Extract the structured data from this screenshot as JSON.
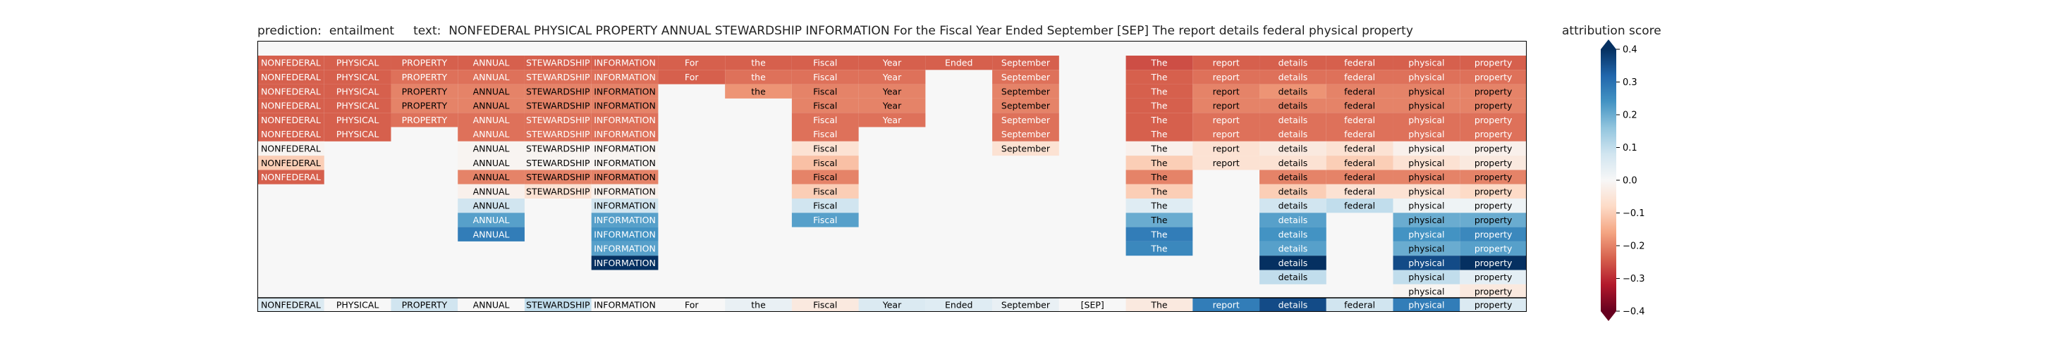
{
  "title": {
    "prediction_label": "prediction:",
    "prediction_value": "entailment",
    "text_label": "text:",
    "text_value": "NONFEDERAL PHYSICAL PROPERTY ANNUAL STEWARDSHIP INFORMATION For the Fiscal Year Ended September [SEP] The report details federal physical property"
  },
  "colorbar": {
    "title": "attribution score",
    "ticks": [
      "0.4",
      "0.3",
      "0.2",
      "0.1",
      "0.0",
      "−0.1",
      "−0.2",
      "−0.3",
      "−0.4"
    ],
    "tick_values": [
      0.4,
      0.3,
      0.2,
      0.1,
      0.0,
      -0.1,
      -0.2,
      -0.3,
      -0.4
    ],
    "range": [
      -0.4,
      0.4
    ],
    "colormap": "RdBu",
    "extend": "both"
  },
  "chart_data": {
    "type": "heatmap",
    "background": "#f7f7f7",
    "tokens": [
      "NONFEDERAL",
      "PHYSICAL",
      "PROPERTY",
      "ANNUAL",
      "STEWARDSHIP",
      "INFORMATION",
      "For",
      "the",
      "Fiscal",
      "Year",
      "Ended",
      "September",
      "[SEP]",
      "The",
      "report",
      "details",
      "federal",
      "physical",
      "property"
    ],
    "stacked_rows": [
      [
        -0.24,
        -0.24,
        -0.24,
        -0.24,
        -0.24,
        -0.24,
        -0.24,
        -0.24,
        -0.24,
        -0.24,
        -0.24,
        -0.24,
        null,
        -0.26,
        -0.24,
        -0.24,
        -0.24,
        -0.24,
        -0.24
      ],
      [
        -0.24,
        -0.24,
        -0.22,
        -0.22,
        -0.22,
        -0.22,
        -0.24,
        -0.22,
        -0.22,
        -0.22,
        null,
        -0.22,
        null,
        -0.24,
        -0.22,
        -0.22,
        -0.22,
        -0.22,
        -0.22
      ],
      [
        -0.24,
        -0.24,
        -0.2,
        -0.2,
        -0.2,
        -0.2,
        null,
        -0.18,
        -0.2,
        -0.2,
        null,
        -0.2,
        null,
        -0.24,
        -0.2,
        -0.18,
        -0.2,
        -0.2,
        -0.2
      ],
      [
        -0.24,
        -0.24,
        -0.2,
        -0.2,
        -0.2,
        -0.2,
        null,
        null,
        -0.2,
        -0.2,
        null,
        -0.2,
        null,
        -0.24,
        -0.2,
        -0.2,
        -0.2,
        -0.2,
        -0.2
      ],
      [
        -0.24,
        -0.24,
        -0.22,
        -0.22,
        -0.22,
        -0.22,
        null,
        null,
        -0.22,
        -0.22,
        null,
        -0.22,
        null,
        -0.24,
        -0.22,
        -0.22,
        -0.22,
        -0.22,
        -0.22
      ],
      [
        -0.24,
        -0.24,
        null,
        -0.22,
        -0.22,
        -0.22,
        null,
        null,
        -0.22,
        null,
        null,
        -0.22,
        null,
        -0.24,
        -0.22,
        -0.22,
        -0.22,
        -0.22,
        -0.22
      ],
      [
        -0.01,
        null,
        null,
        -0.01,
        -0.01,
        -0.01,
        null,
        null,
        -0.06,
        null,
        null,
        -0.06,
        null,
        -0.02,
        -0.06,
        -0.04,
        -0.06,
        -0.02,
        -0.02
      ],
      [
        -0.1,
        null,
        null,
        -0.01,
        -0.01,
        -0.01,
        null,
        null,
        -0.12,
        null,
        null,
        null,
        null,
        -0.1,
        -0.06,
        -0.06,
        -0.1,
        -0.06,
        -0.04
      ],
      [
        -0.24,
        null,
        null,
        -0.2,
        -0.2,
        -0.2,
        null,
        null,
        -0.2,
        null,
        null,
        null,
        null,
        -0.2,
        null,
        -0.2,
        -0.2,
        -0.2,
        -0.2
      ],
      [
        null,
        null,
        null,
        -0.02,
        -0.06,
        -0.02,
        null,
        null,
        -0.1,
        null,
        null,
        null,
        null,
        -0.1,
        null,
        -0.1,
        -0.06,
        -0.06,
        -0.08
      ],
      [
        null,
        null,
        null,
        0.08,
        null,
        0.08,
        null,
        null,
        0.08,
        null,
        null,
        null,
        null,
        0.05,
        null,
        0.08,
        0.1,
        0.02,
        0.02
      ],
      [
        null,
        null,
        null,
        0.22,
        null,
        0.22,
        null,
        null,
        0.22,
        null,
        null,
        null,
        null,
        0.2,
        null,
        0.22,
        null,
        0.2,
        0.2
      ],
      [
        null,
        null,
        null,
        0.28,
        null,
        0.24,
        null,
        null,
        null,
        null,
        null,
        null,
        null,
        0.28,
        null,
        0.24,
        null,
        0.24,
        0.26
      ],
      [
        null,
        null,
        null,
        null,
        null,
        0.22,
        null,
        null,
        null,
        null,
        null,
        null,
        null,
        0.26,
        null,
        0.22,
        null,
        0.2,
        0.22
      ],
      [
        null,
        null,
        null,
        null,
        null,
        0.4,
        null,
        null,
        null,
        null,
        null,
        null,
        null,
        null,
        null,
        0.4,
        null,
        0.36,
        0.4
      ],
      [
        null,
        null,
        null,
        null,
        null,
        null,
        null,
        null,
        null,
        null,
        null,
        null,
        null,
        null,
        null,
        0.1,
        null,
        0.1,
        0.04
      ],
      [
        null,
        null,
        null,
        null,
        null,
        null,
        null,
        null,
        null,
        null,
        null,
        null,
        null,
        null,
        null,
        null,
        null,
        -0.01,
        -0.04
      ]
    ],
    "final_row": [
      0.06,
      0.0,
      0.08,
      0.0,
      0.1,
      0.0,
      0.0,
      0.03,
      -0.04,
      0.06,
      0.05,
      0.03,
      0.0,
      -0.04,
      0.28,
      0.36,
      0.08,
      0.28,
      0.06
    ]
  }
}
